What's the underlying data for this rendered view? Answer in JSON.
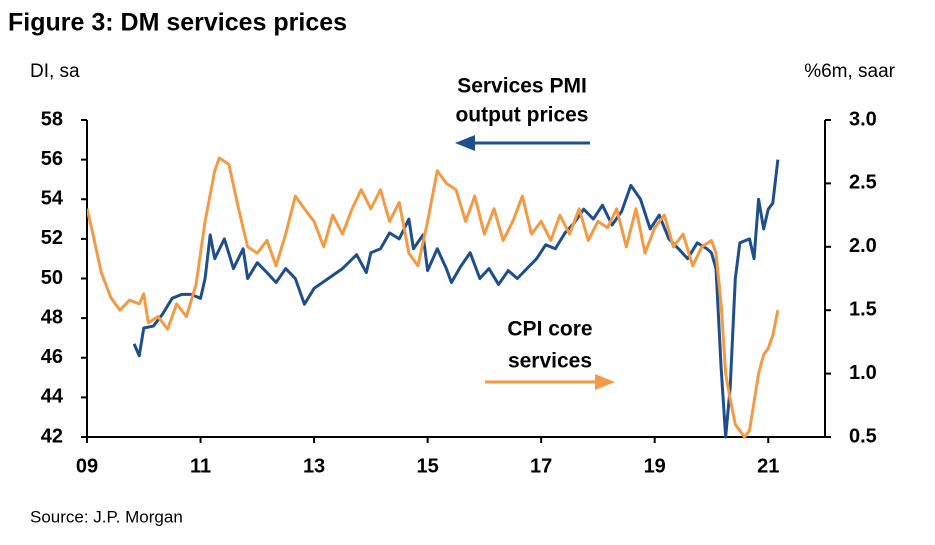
{
  "chart_data": {
    "type": "line",
    "title": "Figure 3: DM services prices",
    "ylabel": "DI, sa",
    "y2label": "%6m, saar",
    "source": "Source: J.P. Morgan",
    "annotations": [
      {
        "lines": [
          "Services PMI",
          "output prices"
        ]
      },
      {
        "lines": [
          "CPI core",
          "services"
        ]
      }
    ],
    "xlim": [
      2009,
      2022
    ],
    "xticks": [
      {
        "value": 2009,
        "label": "09"
      },
      {
        "value": 2011,
        "label": "11"
      },
      {
        "value": 2013,
        "label": "13"
      },
      {
        "value": 2015,
        "label": "15"
      },
      {
        "value": 2017,
        "label": "17"
      },
      {
        "value": 2019,
        "label": "19"
      },
      {
        "value": 2021,
        "label": "21"
      }
    ],
    "ylim": [
      42,
      58
    ],
    "yticks": [
      42,
      44,
      46,
      48,
      50,
      52,
      54,
      56,
      58
    ],
    "y2lim": [
      0.5,
      3.0
    ],
    "y2ticks": [
      0.5,
      {
        "value": 1.0,
        "label": "1.0"
      },
      1.5,
      {
        "value": 2.0,
        "label": "2.0"
      },
      2.5,
      {
        "value": 3.0,
        "label": "3.0"
      }
    ],
    "series": [
      {
        "name": "Services PMI output prices",
        "color": "#1f4e8c",
        "axis": "y",
        "x": [
          2009.83,
          2009.92,
          2010.0,
          2010.17,
          2010.33,
          2010.5,
          2010.67,
          2010.83,
          2011.0,
          2011.08,
          2011.17,
          2011.25,
          2011.42,
          2011.58,
          2011.75,
          2011.83,
          2012.0,
          2012.17,
          2012.33,
          2012.5,
          2012.67,
          2012.83,
          2013.0,
          2013.25,
          2013.5,
          2013.75,
          2013.92,
          2014.0,
          2014.17,
          2014.33,
          2014.5,
          2014.67,
          2014.75,
          2014.92,
          2015.0,
          2015.17,
          2015.33,
          2015.42,
          2015.58,
          2015.75,
          2015.92,
          2016.08,
          2016.25,
          2016.42,
          2016.58,
          2016.75,
          2016.92,
          2017.08,
          2017.25,
          2017.42,
          2017.58,
          2017.75,
          2017.92,
          2018.08,
          2018.25,
          2018.42,
          2018.58,
          2018.75,
          2018.92,
          2019.08,
          2019.25,
          2019.42,
          2019.58,
          2019.75,
          2019.92,
          2020.0,
          2020.08,
          2020.17,
          2020.25,
          2020.33,
          2020.42,
          2020.5,
          2020.67,
          2020.75,
          2020.83,
          2020.92,
          2021.0,
          2021.08,
          2021.17
        ],
        "values": [
          46.7,
          46.1,
          47.5,
          47.6,
          48.2,
          49.0,
          49.2,
          49.2,
          49.0,
          50.0,
          52.2,
          51.0,
          52.0,
          50.5,
          51.5,
          50.0,
          50.8,
          50.3,
          49.8,
          50.5,
          50.0,
          48.7,
          49.5,
          50.0,
          50.5,
          51.2,
          50.3,
          51.3,
          51.5,
          52.3,
          52.0,
          53.0,
          51.5,
          52.2,
          50.4,
          51.5,
          50.5,
          49.8,
          50.6,
          51.3,
          50.0,
          50.5,
          49.7,
          50.4,
          50.0,
          50.5,
          51.0,
          51.7,
          51.5,
          52.3,
          52.8,
          53.5,
          53.0,
          53.7,
          52.7,
          53.4,
          54.7,
          54.0,
          52.5,
          53.2,
          52.0,
          51.5,
          51.0,
          51.8,
          51.5,
          51.3,
          50.5,
          45.5,
          42.0,
          44.5,
          50.0,
          51.8,
          52.0,
          51.0,
          54.0,
          52.5,
          53.5,
          53.8,
          56.0
        ]
      },
      {
        "name": "CPI core services",
        "color": "#f39a45",
        "axis": "y2",
        "x": [
          2009.0,
          2009.08,
          2009.25,
          2009.42,
          2009.58,
          2009.75,
          2009.92,
          2010.0,
          2010.08,
          2010.25,
          2010.42,
          2010.58,
          2010.75,
          2010.92,
          2011.08,
          2011.25,
          2011.33,
          2011.5,
          2011.67,
          2011.83,
          2012.0,
          2012.17,
          2012.33,
          2012.5,
          2012.67,
          2012.83,
          2013.0,
          2013.17,
          2013.33,
          2013.5,
          2013.67,
          2013.83,
          2014.0,
          2014.17,
          2014.33,
          2014.5,
          2014.67,
          2014.83,
          2015.0,
          2015.17,
          2015.33,
          2015.5,
          2015.67,
          2015.83,
          2016.0,
          2016.17,
          2016.33,
          2016.5,
          2016.67,
          2016.83,
          2017.0,
          2017.17,
          2017.33,
          2017.5,
          2017.67,
          2017.83,
          2018.0,
          2018.17,
          2018.33,
          2018.5,
          2018.67,
          2018.83,
          2019.0,
          2019.17,
          2019.33,
          2019.5,
          2019.67,
          2019.83,
          2020.0,
          2020.08,
          2020.17,
          2020.25,
          2020.33,
          2020.42,
          2020.5,
          2020.58,
          2020.67,
          2020.83,
          2020.92,
          2021.0,
          2021.08,
          2021.17
        ],
        "values": [
          2.3,
          2.15,
          1.8,
          1.6,
          1.5,
          1.58,
          1.55,
          1.63,
          1.4,
          1.45,
          1.35,
          1.55,
          1.45,
          1.7,
          2.2,
          2.6,
          2.7,
          2.65,
          2.3,
          2.0,
          1.95,
          2.05,
          1.85,
          2.1,
          2.4,
          2.3,
          2.2,
          2.0,
          2.25,
          2.1,
          2.3,
          2.45,
          2.3,
          2.45,
          2.2,
          2.35,
          1.95,
          1.85,
          2.2,
          2.6,
          2.5,
          2.45,
          2.2,
          2.4,
          2.1,
          2.3,
          2.05,
          2.2,
          2.4,
          2.1,
          2.2,
          2.05,
          2.25,
          2.1,
          2.3,
          2.05,
          2.2,
          2.15,
          2.3,
          2.0,
          2.3,
          1.95,
          2.15,
          2.25,
          2.0,
          2.1,
          1.85,
          2.0,
          2.05,
          1.95,
          1.55,
          1.0,
          0.8,
          0.6,
          0.55,
          0.5,
          0.55,
          1.0,
          1.15,
          1.2,
          1.3,
          1.5
        ]
      }
    ]
  }
}
